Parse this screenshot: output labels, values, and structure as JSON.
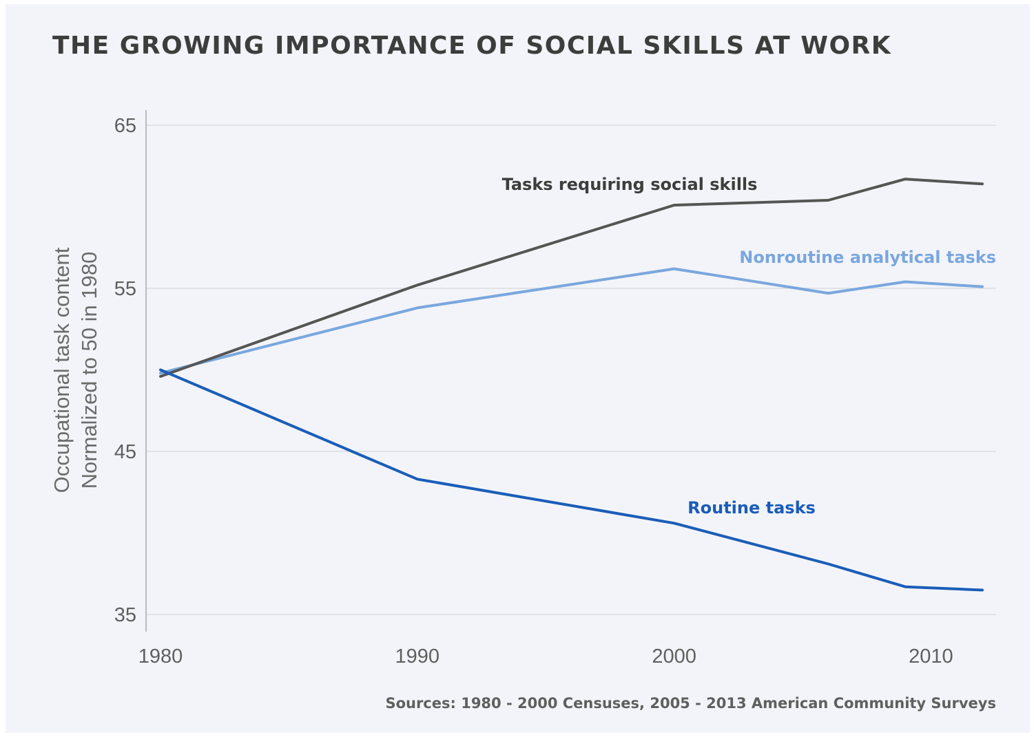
{
  "source_note": "Sources: 1980 - 2000 Censuses, 2005 - 2013 American Community Surveys",
  "chart_data": {
    "type": "line",
    "title": "THE GROWING IMPORTANCE OF SOCIAL SKILLS AT WORK",
    "xlabel": "",
    "ylabel": [
      "Occupational task content",
      "Normalized to 50 in 1980"
    ],
    "xlim": [
      1979.5,
      2012.5
    ],
    "ylim": [
      34,
      66
    ],
    "xticks": [
      1980,
      1990,
      2000,
      2010
    ],
    "yticks": [
      35,
      45,
      55,
      65
    ],
    "grid": "horizontal",
    "legend": "inline labels",
    "series": [
      {
        "name": "Tasks requiring social skills",
        "color": "#555555",
        "x": [
          1980,
          1990,
          2000,
          2006,
          2009,
          2012
        ],
        "y": [
          49.6,
          55.2,
          60.1,
          60.4,
          61.7,
          61.4
        ]
      },
      {
        "name": "Nonroutine analytical tasks",
        "color": "#7aa7de",
        "x": [
          1980,
          1990,
          2000,
          2006,
          2009,
          2012
        ],
        "y": [
          49.8,
          53.8,
          56.2,
          54.7,
          55.4,
          55.1
        ]
      },
      {
        "name": "Routine tasks",
        "color": "#1a5db8",
        "x": [
          1980,
          1990,
          2000,
          2006,
          2009,
          2012
        ],
        "y": [
          50.0,
          43.3,
          40.6,
          38.1,
          36.7,
          36.5
        ]
      }
    ]
  }
}
